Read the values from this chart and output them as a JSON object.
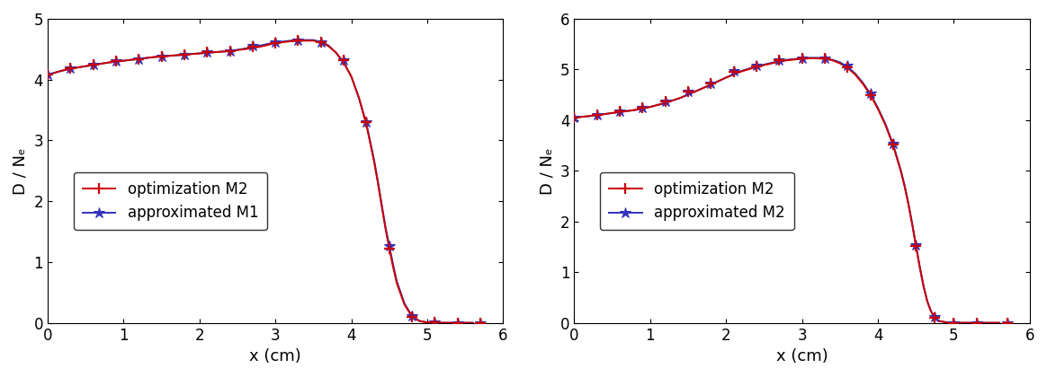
{
  "left_panel": {
    "xlabel": "x (cm)",
    "ylabel": "D / Nₑ",
    "xlim": [
      0,
      6
    ],
    "ylim": [
      0,
      5
    ],
    "yticks": [
      0,
      1,
      2,
      3,
      4,
      5
    ],
    "xticks": [
      0,
      1,
      2,
      3,
      4,
      5,
      6
    ],
    "legend": [
      "optimization M2",
      "approximated M1"
    ],
    "line_color_opt": "#cc0000",
    "line_color_approx": "#3333bb",
    "curve_x": [
      0.0,
      0.2,
      0.4,
      0.6,
      0.8,
      1.0,
      1.2,
      1.4,
      1.6,
      1.8,
      2.0,
      2.2,
      2.4,
      2.6,
      2.8,
      3.0,
      3.2,
      3.4,
      3.5,
      3.6,
      3.7,
      3.8,
      3.9,
      4.0,
      4.1,
      4.2,
      4.3,
      4.35,
      4.4,
      4.45,
      4.5,
      4.55,
      4.6,
      4.7,
      4.8,
      4.9,
      5.0,
      5.2,
      5.4,
      5.6
    ],
    "curve_y_opt": [
      4.08,
      4.15,
      4.2,
      4.24,
      4.28,
      4.31,
      4.34,
      4.37,
      4.39,
      4.41,
      4.43,
      4.45,
      4.47,
      4.5,
      4.54,
      4.6,
      4.63,
      4.64,
      4.64,
      4.61,
      4.55,
      4.44,
      4.28,
      4.05,
      3.7,
      3.25,
      2.65,
      2.3,
      1.92,
      1.55,
      1.22,
      0.92,
      0.65,
      0.3,
      0.1,
      0.03,
      0.008,
      0.002,
      0.001,
      0.001
    ],
    "curve_y_approx": [
      4.08,
      4.15,
      4.2,
      4.24,
      4.28,
      4.31,
      4.34,
      4.37,
      4.39,
      4.41,
      4.43,
      4.45,
      4.47,
      4.51,
      4.56,
      4.61,
      4.64,
      4.65,
      4.65,
      4.62,
      4.56,
      4.44,
      4.28,
      4.05,
      3.7,
      3.27,
      2.68,
      2.33,
      1.95,
      1.58,
      1.27,
      0.96,
      0.68,
      0.32,
      0.11,
      0.03,
      0.008,
      0.002,
      0.001,
      0.001
    ],
    "marker_x": [
      0.0,
      0.3,
      0.6,
      0.9,
      1.2,
      1.5,
      1.8,
      2.1,
      2.4,
      2.7,
      3.0,
      3.3,
      3.6,
      3.9,
      4.2,
      4.5,
      4.8,
      5.1,
      5.4,
      5.7
    ],
    "marker_y_opt": [
      4.08,
      4.18,
      4.24,
      4.3,
      4.34,
      4.38,
      4.41,
      4.45,
      4.47,
      4.54,
      4.6,
      4.64,
      4.62,
      4.32,
      3.3,
      1.22,
      0.1,
      0.005,
      0.001,
      0.001
    ],
    "marker_y_approx": [
      4.08,
      4.18,
      4.24,
      4.3,
      4.34,
      4.38,
      4.41,
      4.45,
      4.47,
      4.55,
      4.61,
      4.65,
      4.62,
      4.32,
      3.3,
      1.27,
      0.11,
      0.005,
      0.001,
      0.001
    ]
  },
  "right_panel": {
    "xlabel": "x (cm)",
    "ylabel": "D / Nₑ",
    "xlim": [
      0,
      6
    ],
    "ylim": [
      0,
      6
    ],
    "yticks": [
      0,
      1,
      2,
      3,
      4,
      5,
      6
    ],
    "xticks": [
      0,
      1,
      2,
      3,
      4,
      5,
      6
    ],
    "legend": [
      "optimization M2",
      "approximated M2"
    ],
    "line_color_opt": "#cc0000",
    "line_color_approx": "#3333bb",
    "curve_x": [
      0.0,
      0.2,
      0.4,
      0.6,
      0.8,
      1.0,
      1.2,
      1.4,
      1.6,
      1.8,
      2.0,
      2.2,
      2.4,
      2.6,
      2.8,
      3.0,
      3.1,
      3.2,
      3.3,
      3.4,
      3.5,
      3.6,
      3.7,
      3.8,
      3.9,
      4.0,
      4.1,
      4.2,
      4.3,
      4.35,
      4.4,
      4.45,
      4.5,
      4.55,
      4.6,
      4.65,
      4.7,
      4.75,
      4.8,
      4.9,
      5.0,
      5.2,
      5.4,
      5.6
    ],
    "curve_y_opt": [
      4.05,
      4.08,
      4.12,
      4.16,
      4.2,
      4.26,
      4.34,
      4.44,
      4.57,
      4.7,
      4.84,
      4.96,
      5.05,
      5.12,
      5.18,
      5.21,
      5.22,
      5.22,
      5.21,
      5.18,
      5.12,
      5.03,
      4.9,
      4.72,
      4.5,
      4.22,
      3.9,
      3.5,
      3.0,
      2.7,
      2.35,
      1.95,
      1.52,
      1.1,
      0.72,
      0.42,
      0.22,
      0.1,
      0.04,
      0.01,
      0.003,
      0.001,
      0.001,
      0.001
    ],
    "curve_y_approx": [
      4.05,
      4.08,
      4.12,
      4.16,
      4.2,
      4.26,
      4.34,
      4.44,
      4.57,
      4.7,
      4.84,
      4.97,
      5.06,
      5.13,
      5.19,
      5.22,
      5.23,
      5.23,
      5.22,
      5.19,
      5.14,
      5.05,
      4.92,
      4.74,
      4.52,
      4.24,
      3.92,
      3.52,
      3.02,
      2.72,
      2.37,
      1.97,
      1.54,
      1.12,
      0.74,
      0.43,
      0.23,
      0.11,
      0.04,
      0.01,
      0.003,
      0.001,
      0.001,
      0.001
    ],
    "marker_x": [
      0.0,
      0.3,
      0.6,
      0.9,
      1.2,
      1.5,
      1.8,
      2.1,
      2.4,
      2.7,
      3.0,
      3.3,
      3.6,
      3.9,
      4.2,
      4.5,
      4.75,
      5.0,
      5.3,
      5.7
    ],
    "marker_y_opt": [
      4.05,
      4.1,
      4.17,
      4.24,
      4.36,
      4.57,
      4.73,
      4.96,
      5.06,
      5.18,
      5.21,
      5.21,
      5.05,
      4.5,
      3.52,
      1.52,
      0.1,
      0.003,
      0.001,
      0.001
    ],
    "marker_y_approx": [
      4.05,
      4.1,
      4.17,
      4.24,
      4.36,
      4.57,
      4.73,
      4.97,
      5.07,
      5.19,
      5.22,
      5.22,
      5.07,
      4.52,
      3.53,
      1.54,
      0.11,
      0.003,
      0.001,
      0.001
    ]
  },
  "bg_color": "#ffffff",
  "line_width": 1.4,
  "marker_size_plus": 9,
  "marker_size_star": 9,
  "marker_lw": 1.6,
  "font_size": 13,
  "tick_font_size": 12,
  "legend_font_size": 12
}
